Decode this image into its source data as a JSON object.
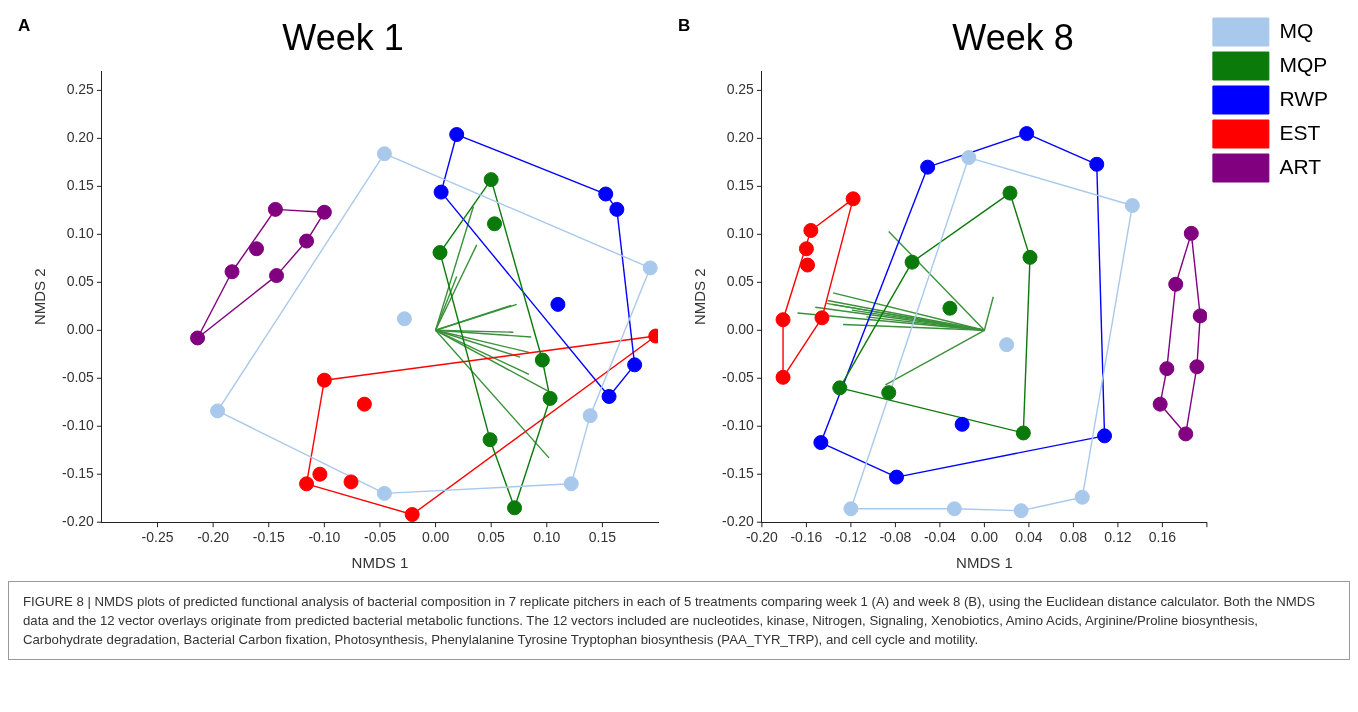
{
  "chart_data": [
    {
      "type": "scatter",
      "title": "Week 1",
      "xlabel": "NMDS 1",
      "ylabel": "NMDS 2",
      "marker": "circle",
      "xlim": [
        -0.3,
        0.2
      ],
      "xticks": [
        {
          "value": -0.25,
          "label": "-0.25"
        },
        {
          "value": -0.2,
          "label": "-0.20"
        },
        {
          "value": -0.15,
          "label": "-0.15"
        },
        {
          "value": -0.1,
          "label": "-0.10"
        },
        {
          "value": -0.05,
          "label": "-0.05"
        },
        {
          "value": 0,
          "label": "0.00"
        },
        {
          "value": 0.05,
          "label": "0.05"
        },
        {
          "value": 0.1,
          "label": "0.10"
        },
        {
          "value": 0.15,
          "label": "0.15"
        }
      ],
      "ylim": [
        -0.2,
        0.27
      ],
      "yticks": [
        {
          "value": -0.2,
          "label": "-0.20"
        },
        {
          "value": -0.15,
          "label": "-0.15"
        },
        {
          "value": -0.1,
          "label": "-0.10"
        },
        {
          "value": -0.05,
          "label": "-0.05"
        },
        {
          "value": 0,
          "label": "0.00"
        },
        {
          "value": 0.05,
          "label": "0.05"
        },
        {
          "value": 0.1,
          "label": "0.10"
        },
        {
          "value": 0.15,
          "label": "0.15"
        },
        {
          "value": 0.2,
          "label": "0.20"
        },
        {
          "value": 0.25,
          "label": "0.25"
        }
      ],
      "annotations": [
        "A",
        "FIGURE 8 | NMDS plots of predicted functional analysis of bacterial composition in 7 replicate pitchers in each of 5 treatments comparing week 1 (A) and week 8 (B), using the Euclidean distance calculator. Both the NMDS data and the 12 vector overlays originate from predicted bacterial metabolic functions. The 12 vectors included are nucleotides, kinase, Nitrogen, Signaling, Xenobiotics, Amino Acids, Arginine/Proline biosynthesis, Carbohydrate degradation, Bacterial Carbon fixation, Photosynthesis, Phenylalanine Tyrosine Tryptophan biosynthesis (PAA_TYR_TRP), and cell cycle and motility."
      ],
      "series": [
        {
          "type": "line",
          "marker": "none",
          "color": "#a9c9ec",
          "x": [
            -0.046,
            0.193
          ],
          "values": [
            0.184,
            0.065
          ]
        },
        {
          "type": "line",
          "marker": "none",
          "color": "#a9c9ec",
          "x": [
            0.193,
            0.139
          ],
          "values": [
            0.065,
            -0.089
          ]
        },
        {
          "type": "line",
          "marker": "none",
          "color": "#a9c9ec",
          "x": [
            0.139,
            0.122
          ],
          "values": [
            -0.089,
            -0.16
          ]
        },
        {
          "type": "line",
          "marker": "none",
          "color": "#a9c9ec",
          "x": [
            0.122,
            -0.046
          ],
          "values": [
            -0.16,
            -0.17
          ]
        },
        {
          "type": "line",
          "marker": "none",
          "color": "#a9c9ec",
          "x": [
            -0.046,
            -0.196
          ],
          "values": [
            -0.17,
            -0.084
          ]
        },
        {
          "type": "line",
          "marker": "none",
          "color": "#a9c9ec",
          "x": [
            -0.196,
            -0.046
          ],
          "values": [
            -0.084,
            0.184
          ]
        },
        {
          "type": "line",
          "marker": "none",
          "color": "#0a7a0a",
          "x": [
            0.05,
            0.096
          ],
          "values": [
            0.157,
            -0.031
          ]
        },
        {
          "type": "line",
          "marker": "none",
          "color": "#0a7a0a",
          "x": [
            0.096,
            0.103
          ],
          "values": [
            -0.031,
            -0.071
          ]
        },
        {
          "type": "line",
          "marker": "none",
          "color": "#0a7a0a",
          "x": [
            0.103,
            0.071
          ],
          "values": [
            -0.071,
            -0.185
          ]
        },
        {
          "type": "line",
          "marker": "none",
          "color": "#0a7a0a",
          "x": [
            0.071,
            0.049
          ],
          "values": [
            -0.185,
            -0.114
          ]
        },
        {
          "type": "line",
          "marker": "none",
          "color": "#0a7a0a",
          "x": [
            0.049,
            0.004
          ],
          "values": [
            -0.114,
            0.081
          ]
        },
        {
          "type": "line",
          "marker": "none",
          "color": "#0a7a0a",
          "x": [
            0.004,
            0.05
          ],
          "values": [
            0.081,
            0.157
          ]
        },
        {
          "type": "line",
          "marker": "none",
          "color": "#0000ff",
          "x": [
            0.019,
            0.153
          ],
          "values": [
            0.204,
            0.142
          ]
        },
        {
          "type": "line",
          "marker": "none",
          "color": "#0000ff",
          "x": [
            0.153,
            0.163
          ],
          "values": [
            0.142,
            0.126
          ]
        },
        {
          "type": "line",
          "marker": "none",
          "color": "#0000ff",
          "x": [
            0.163,
            0.179
          ],
          "values": [
            0.126,
            -0.036
          ]
        },
        {
          "type": "line",
          "marker": "none",
          "color": "#0000ff",
          "x": [
            0.179,
            0.156
          ],
          "values": [
            -0.036,
            -0.069
          ]
        },
        {
          "type": "line",
          "marker": "none",
          "color": "#0000ff",
          "x": [
            0.156,
            0.005
          ],
          "values": [
            -0.069,
            0.144
          ]
        },
        {
          "type": "line",
          "marker": "none",
          "color": "#0000ff",
          "x": [
            0.005,
            0.019
          ],
          "values": [
            0.144,
            0.204
          ]
        },
        {
          "type": "line",
          "marker": "none",
          "color": "#ff0000",
          "x": [
            -0.1,
            0.198
          ],
          "values": [
            -0.052,
            -0.006
          ]
        },
        {
          "type": "line",
          "marker": "none",
          "color": "#ff0000",
          "x": [
            0.198,
            -0.021
          ],
          "values": [
            -0.006,
            -0.192
          ]
        },
        {
          "type": "line",
          "marker": "none",
          "color": "#ff0000",
          "x": [
            -0.021,
            -0.116
          ],
          "values": [
            -0.192,
            -0.16
          ]
        },
        {
          "type": "line",
          "marker": "none",
          "color": "#ff0000",
          "x": [
            -0.116,
            -0.1
          ],
          "values": [
            -0.16,
            -0.052
          ]
        },
        {
          "type": "line",
          "marker": "none",
          "color": "#800080",
          "x": [
            -0.144,
            -0.1
          ],
          "values": [
            0.126,
            0.123
          ]
        },
        {
          "type": "line",
          "marker": "none",
          "color": "#800080",
          "x": [
            -0.1,
            -0.116
          ],
          "values": [
            0.123,
            0.093
          ]
        },
        {
          "type": "line",
          "marker": "none",
          "color": "#800080",
          "x": [
            -0.116,
            -0.143
          ],
          "values": [
            0.093,
            0.057
          ]
        },
        {
          "type": "line",
          "marker": "none",
          "color": "#800080",
          "x": [
            -0.143,
            -0.214
          ],
          "values": [
            0.057,
            -0.008
          ]
        },
        {
          "type": "line",
          "marker": "none",
          "color": "#800080",
          "x": [
            -0.214,
            -0.183
          ],
          "values": [
            -0.008,
            0.061
          ]
        },
        {
          "type": "line",
          "marker": "none",
          "color": "#800080",
          "x": [
            -0.183,
            -0.144
          ],
          "values": [
            0.061,
            0.126
          ]
        },
        {
          "type": "line",
          "marker": "none",
          "color": "#3a913a",
          "x": [
            0,
            0.034
          ],
          "values": [
            0,
            0.129
          ]
        },
        {
          "type": "line",
          "marker": "none",
          "color": "#3a913a",
          "x": [
            0,
            0.037
          ],
          "values": [
            0,
            0.089
          ]
        },
        {
          "type": "line",
          "marker": "none",
          "color": "#3a913a",
          "x": [
            0,
            0.019
          ],
          "values": [
            0,
            0.056
          ]
        },
        {
          "type": "line",
          "marker": "none",
          "color": "#3a913a",
          "x": [
            0,
            0.073
          ],
          "values": [
            0,
            0.027
          ]
        },
        {
          "type": "line",
          "marker": "none",
          "color": "#3a913a",
          "x": [
            0,
            0.068
          ],
          "values": [
            0,
            0.026
          ]
        },
        {
          "type": "line",
          "marker": "none",
          "color": "#3a913a",
          "x": [
            0,
            0.07
          ],
          "values": [
            0,
            -0.002
          ]
        },
        {
          "type": "line",
          "marker": "none",
          "color": "#3a913a",
          "x": [
            0,
            0.086
          ],
          "values": [
            0,
            -0.007
          ]
        },
        {
          "type": "line",
          "marker": "none",
          "color": "#3a913a",
          "x": [
            0,
            0.084
          ],
          "values": [
            0,
            -0.023
          ]
        },
        {
          "type": "line",
          "marker": "none",
          "color": "#3a913a",
          "x": [
            0,
            0.076
          ],
          "values": [
            0,
            -0.028
          ]
        },
        {
          "type": "line",
          "marker": "none",
          "color": "#3a913a",
          "x": [
            0,
            0.084
          ],
          "values": [
            0,
            -0.046
          ]
        },
        {
          "type": "line",
          "marker": "none",
          "color": "#3a913a",
          "x": [
            0,
            0.102
          ],
          "values": [
            0,
            -0.064
          ]
        },
        {
          "type": "line",
          "marker": "none",
          "color": "#3a913a",
          "x": [
            0,
            0.102
          ],
          "values": [
            0,
            -0.133
          ]
        },
        {
          "color": "#a9c9ec",
          "x": [
            -0.046,
            0.193,
            -0.028,
            -0.196,
            -0.046,
            0.122,
            0.139
          ],
          "values": [
            0.184,
            0.065,
            0.012,
            -0.084,
            -0.17,
            -0.16,
            -0.089
          ]
        },
        {
          "color": "#0a7a0a",
          "x": [
            0.05,
            0.053,
            0.004,
            0.096,
            0.103,
            0.049,
            0.071
          ],
          "values": [
            0.157,
            0.111,
            0.081,
            -0.031,
            -0.071,
            -0.114,
            -0.185
          ]
        },
        {
          "color": "#0000ff",
          "x": [
            0.019,
            0.005,
            0.153,
            0.163,
            0.11,
            0.179,
            0.156
          ],
          "values": [
            0.204,
            0.144,
            0.142,
            0.126,
            0.027,
            -0.036,
            -0.069
          ]
        },
        {
          "color": "#ff0000",
          "x": [
            0.198,
            -0.1,
            -0.064,
            -0.104,
            -0.116,
            -0.076,
            -0.021
          ],
          "values": [
            -0.006,
            -0.052,
            -0.077,
            -0.15,
            -0.16,
            -0.158,
            -0.192
          ]
        },
        {
          "color": "#800080",
          "x": [
            -0.144,
            -0.1,
            -0.161,
            -0.116,
            -0.183,
            -0.143,
            -0.214
          ],
          "values": [
            0.126,
            0.123,
            0.085,
            0.093,
            0.061,
            0.057,
            -0.008
          ]
        }
      ]
    },
    {
      "type": "scatter",
      "title": "Week 8",
      "xlabel": "NMDS 1",
      "ylabel": "NMDS 2",
      "marker": "circle",
      "legend": "top right",
      "xlim": [
        -0.2,
        0.2
      ],
      "xticks": [
        {
          "value": -0.2,
          "label": "-0.20"
        },
        -0.16,
        -0.12,
        -0.08,
        -0.04,
        {
          "value": 0,
          "label": "0.00"
        },
        0.04,
        0.08,
        0.12,
        0.16,
        {
          "value": 0.2,
          "label": null
        }
      ],
      "ylim": [
        -0.2,
        0.27
      ],
      "yticks": [
        {
          "value": -0.2,
          "label": "-0.20"
        },
        -0.15,
        {
          "value": -0.1,
          "label": "-0.10"
        },
        -0.05,
        {
          "value": 0,
          "label": "0.00"
        },
        0.05,
        {
          "value": 0.1,
          "label": "0.10"
        },
        0.15,
        {
          "value": 0.2,
          "label": "0.20"
        },
        0.25
      ],
      "annotations": [
        "B"
      ],
      "series": [
        {
          "type": "line",
          "marker": "none",
          "color": "#a9c9ec",
          "x": [
            -0.014,
            0.133
          ],
          "values": [
            0.18,
            0.13
          ]
        },
        {
          "type": "line",
          "marker": "none",
          "color": "#a9c9ec",
          "x": [
            0.133,
            0.088
          ],
          "values": [
            0.13,
            -0.174
          ]
        },
        {
          "type": "line",
          "marker": "none",
          "color": "#a9c9ec",
          "x": [
            0.088,
            0.033
          ],
          "values": [
            -0.174,
            -0.188
          ]
        },
        {
          "type": "line",
          "marker": "none",
          "color": "#a9c9ec",
          "x": [
            0.033,
            -0.027
          ],
          "values": [
            -0.188,
            -0.186
          ]
        },
        {
          "type": "line",
          "marker": "none",
          "color": "#a9c9ec",
          "x": [
            -0.027,
            -0.12
          ],
          "values": [
            -0.186,
            -0.186
          ]
        },
        {
          "type": "line",
          "marker": "none",
          "color": "#a9c9ec",
          "x": [
            -0.12,
            -0.014
          ],
          "values": [
            -0.186,
            0.18
          ]
        },
        {
          "type": "line",
          "marker": "none",
          "color": "#0a7a0a",
          "x": [
            0.023,
            0.041
          ],
          "values": [
            0.143,
            0.076
          ]
        },
        {
          "type": "line",
          "marker": "none",
          "color": "#0a7a0a",
          "x": [
            0.041,
            0.035
          ],
          "values": [
            0.076,
            -0.107
          ]
        },
        {
          "type": "line",
          "marker": "none",
          "color": "#0a7a0a",
          "x": [
            0.035,
            -0.13
          ],
          "values": [
            -0.107,
            -0.06
          ]
        },
        {
          "type": "line",
          "marker": "none",
          "color": "#0a7a0a",
          "x": [
            -0.13,
            -0.065
          ],
          "values": [
            -0.06,
            0.071
          ]
        },
        {
          "type": "line",
          "marker": "none",
          "color": "#0a7a0a",
          "x": [
            -0.065,
            0.023
          ],
          "values": [
            0.071,
            0.143
          ]
        },
        {
          "type": "line",
          "marker": "none",
          "color": "#0000ff",
          "x": [
            -0.051,
            0.038
          ],
          "values": [
            0.17,
            0.205
          ]
        },
        {
          "type": "line",
          "marker": "none",
          "color": "#0000ff",
          "x": [
            0.038,
            0.101
          ],
          "values": [
            0.205,
            0.173
          ]
        },
        {
          "type": "line",
          "marker": "none",
          "color": "#0000ff",
          "x": [
            0.101,
            0.108
          ],
          "values": [
            0.173,
            -0.11
          ]
        },
        {
          "type": "line",
          "marker": "none",
          "color": "#0000ff",
          "x": [
            0.108,
            -0.079
          ],
          "values": [
            -0.11,
            -0.153
          ]
        },
        {
          "type": "line",
          "marker": "none",
          "color": "#0000ff",
          "x": [
            -0.079,
            -0.147
          ],
          "values": [
            -0.153,
            -0.117
          ]
        },
        {
          "type": "line",
          "marker": "none",
          "color": "#0000ff",
          "x": [
            -0.147,
            -0.051
          ],
          "values": [
            -0.117,
            0.17
          ]
        },
        {
          "type": "line",
          "marker": "none",
          "color": "#ff0000",
          "x": [
            -0.118,
            -0.156
          ],
          "values": [
            0.137,
            0.104
          ]
        },
        {
          "type": "line",
          "marker": "none",
          "color": "#ff0000",
          "x": [
            -0.156,
            -0.181
          ],
          "values": [
            0.104,
            0.011
          ]
        },
        {
          "type": "line",
          "marker": "none",
          "color": "#ff0000",
          "x": [
            -0.181,
            -0.181
          ],
          "values": [
            0.011,
            -0.049
          ]
        },
        {
          "type": "line",
          "marker": "none",
          "color": "#ff0000",
          "x": [
            -0.181,
            -0.146
          ],
          "values": [
            -0.049,
            0.013
          ]
        },
        {
          "type": "line",
          "marker": "none",
          "color": "#ff0000",
          "x": [
            -0.146,
            -0.118
          ],
          "values": [
            0.013,
            0.137
          ]
        },
        {
          "type": "line",
          "marker": "none",
          "color": "#800080",
          "x": [
            0.186,
            0.194
          ],
          "values": [
            0.101,
            0.015
          ]
        },
        {
          "type": "line",
          "marker": "none",
          "color": "#800080",
          "x": [
            0.194,
            0.191
          ],
          "values": [
            0.015,
            -0.038
          ]
        },
        {
          "type": "line",
          "marker": "none",
          "color": "#800080",
          "x": [
            0.191,
            0.181
          ],
          "values": [
            -0.038,
            -0.108
          ]
        },
        {
          "type": "line",
          "marker": "none",
          "color": "#800080",
          "x": [
            0.181,
            0.158
          ],
          "values": [
            -0.108,
            -0.077
          ]
        },
        {
          "type": "line",
          "marker": "none",
          "color": "#800080",
          "x": [
            0.158,
            0.164
          ],
          "values": [
            -0.077,
            -0.04
          ]
        },
        {
          "type": "line",
          "marker": "none",
          "color": "#800080",
          "x": [
            0.164,
            0.172
          ],
          "values": [
            -0.04,
            0.048
          ]
        },
        {
          "type": "line",
          "marker": "none",
          "color": "#800080",
          "x": [
            0.172,
            0.186
          ],
          "values": [
            0.048,
            0.101
          ]
        },
        {
          "type": "line",
          "marker": "none",
          "color": "#3a913a",
          "x": [
            0,
            -0.086
          ],
          "values": [
            0,
            0.103
          ]
        },
        {
          "type": "line",
          "marker": "none",
          "color": "#3a913a",
          "x": [
            0,
            0.008
          ],
          "values": [
            0,
            0.035
          ]
        },
        {
          "type": "line",
          "marker": "none",
          "color": "#3a913a",
          "x": [
            0,
            -0.089
          ],
          "values": [
            0,
            -0.057
          ]
        },
        {
          "type": "line",
          "marker": "none",
          "color": "#3a913a",
          "x": [
            0,
            -0.136
          ],
          "values": [
            0,
            0.039
          ]
        },
        {
          "type": "line",
          "marker": "none",
          "color": "#3a913a",
          "x": [
            0,
            -0.141
          ],
          "values": [
            0,
            0.031
          ]
        },
        {
          "type": "line",
          "marker": "none",
          "color": "#3a913a",
          "x": [
            0,
            -0.152
          ],
          "values": [
            0,
            0.024
          ]
        },
        {
          "type": "line",
          "marker": "none",
          "color": "#3a913a",
          "x": [
            0,
            -0.168
          ],
          "values": [
            0,
            0.018
          ]
        },
        {
          "type": "line",
          "marker": "none",
          "color": "#3a913a",
          "x": [
            0,
            -0.127
          ],
          "values": [
            0,
            0.006
          ]
        },
        {
          "type": "line",
          "marker": "none",
          "color": "#3a913a",
          "x": [
            0,
            -0.137
          ],
          "values": [
            0,
            0.027
          ]
        },
        {
          "type": "line",
          "marker": "none",
          "color": "#3a913a",
          "x": [
            0,
            -0.119
          ],
          "values": [
            0,
            0.021
          ]
        },
        {
          "type": "line",
          "marker": "none",
          "color": "#3a913a",
          "x": [
            0,
            -0.106
          ],
          "values": [
            0,
            0.014
          ]
        },
        {
          "type": "line",
          "marker": "none",
          "color": "#3a913a",
          "x": [
            0,
            -0.142
          ],
          "values": [
            0,
            0.028
          ]
        },
        {
          "name": "MQ",
          "color": "#a9c9ec",
          "x": [
            -0.014,
            0.133,
            0.02,
            -0.12,
            -0.027,
            0.033,
            0.088
          ],
          "values": [
            0.18,
            0.13,
            -0.015,
            -0.186,
            -0.186,
            -0.188,
            -0.174
          ]
        },
        {
          "name": "MQP",
          "color": "#0a7a0a",
          "x": [
            0.023,
            0.041,
            -0.065,
            -0.031,
            -0.13,
            -0.086,
            0.035
          ],
          "values": [
            0.143,
            0.076,
            0.071,
            0.023,
            -0.06,
            -0.065,
            -0.107
          ]
        },
        {
          "name": "RWP",
          "color": "#0000ff",
          "x": [
            0.038,
            -0.051,
            0.101,
            -0.02,
            -0.147,
            -0.079,
            0.108
          ],
          "values": [
            0.205,
            0.17,
            0.173,
            -0.098,
            -0.117,
            -0.153,
            -0.11
          ]
        },
        {
          "name": "EST",
          "color": "#ff0000",
          "x": [
            -0.118,
            -0.156,
            -0.16,
            -0.159,
            -0.181,
            -0.146,
            -0.181
          ],
          "values": [
            0.137,
            0.104,
            0.085,
            0.068,
            0.011,
            0.013,
            -0.049
          ]
        },
        {
          "name": "ART",
          "color": "#800080",
          "x": [
            0.186,
            0.172,
            0.194,
            0.164,
            0.191,
            0.158,
            0.181
          ],
          "values": [
            0.101,
            0.048,
            0.015,
            -0.04,
            -0.038,
            -0.077,
            -0.108
          ]
        }
      ]
    }
  ]
}
